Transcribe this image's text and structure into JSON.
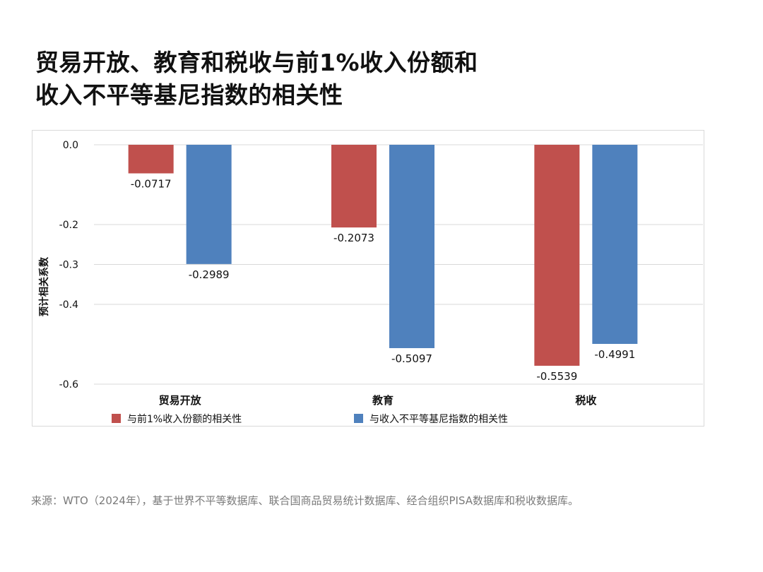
{
  "title": {
    "line1": "贸易开放、教育和税收与前1%收入份额和",
    "line2": "收入不平等基尼指数的相关性"
  },
  "source": "来源：WTO（2024年），基于世界不平等数据库、联合国商品贸易统计数据库、经合组织PISA数据库和税收数据库。",
  "chart_data": {
    "type": "bar",
    "title": "贸易开放、教育和税收与前1%收入份额和收入不平等基尼指数的相关性",
    "ylabel": "预计相关系数",
    "xlabel": "",
    "ylim": [
      -0.6,
      0.0
    ],
    "yticks": [
      0.0,
      -0.2,
      -0.3,
      -0.4,
      -0.6
    ],
    "ytick_labels": [
      "0.0",
      "-0.2",
      "-0.3",
      "-0.4",
      "-0.6"
    ],
    "grid": true,
    "legend_position": "bottom",
    "categories": [
      "贸易开放",
      "教育",
      "税收"
    ],
    "series": [
      {
        "name": "与前1%收入份额的相关性",
        "color": "#c0504d",
        "values": [
          -0.0717,
          -0.2073,
          -0.5539
        ],
        "labels": [
          "-0.0717",
          "-0.2073",
          "-0.5539"
        ]
      },
      {
        "name": "与收入不平等基尼指数的相关性",
        "color": "#4f81bd",
        "values": [
          -0.2989,
          -0.5097,
          -0.4991
        ],
        "labels": [
          "-0.2989",
          "-0.5097",
          "-0.4991"
        ]
      }
    ]
  }
}
